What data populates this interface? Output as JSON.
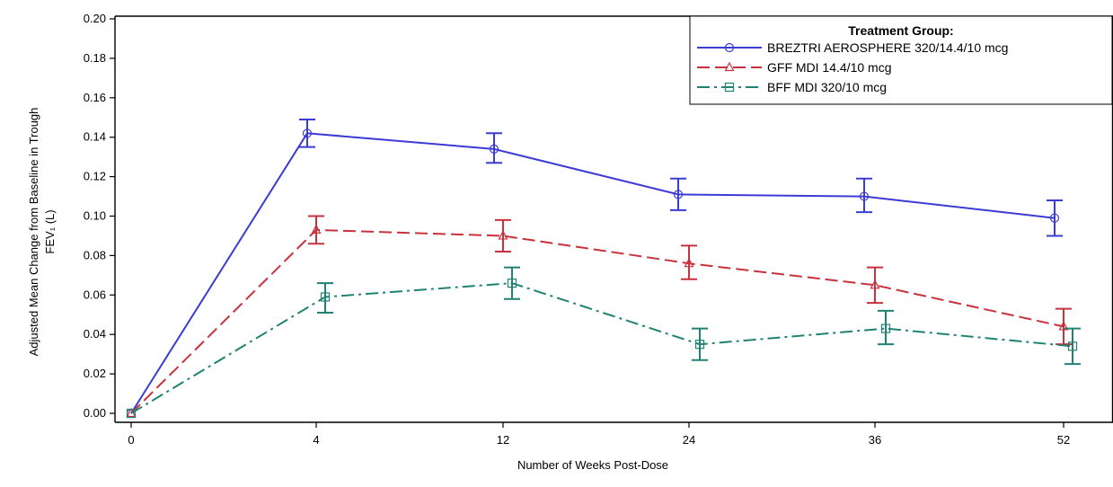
{
  "chart_data": {
    "type": "line",
    "xlabel": "Number of Weeks Post-Dose",
    "ylabel_lines": [
      "Adjusted Mean Change from Baseline in Trough",
      "FEV₁ (L)"
    ],
    "categories": [
      "0",
      "4",
      "12",
      "24",
      "36",
      "52"
    ],
    "ylim": [
      0,
      0.2
    ],
    "y_ticks": [
      "0.00",
      "0.02",
      "0.04",
      "0.06",
      "0.08",
      "0.10",
      "0.12",
      "0.14",
      "0.16",
      "0.18",
      "0.20"
    ],
    "grid": false,
    "legend": {
      "title": "Treatment Group:",
      "placement": "top-right"
    },
    "series": [
      {
        "name": "BREZTRI AEROSPHERE 320/14.4/10 mcg",
        "color": "#3b3bd6",
        "marker": "circle",
        "line_style": "solid",
        "values": [
          0,
          0.142,
          0.134,
          0.111,
          0.11,
          0.099
        ],
        "lower": [
          0,
          0.135,
          0.127,
          0.103,
          0.102,
          0.09
        ],
        "upper": [
          0,
          0.149,
          0.142,
          0.119,
          0.119,
          0.108
        ]
      },
      {
        "name": "GFF MDI 14.4/10 mcg",
        "color": "#c8323c",
        "marker": "triangle",
        "line_style": "dash",
        "values": [
          0,
          0.093,
          0.09,
          0.076,
          0.065,
          0.044
        ],
        "lower": [
          0,
          0.086,
          0.082,
          0.068,
          0.056,
          0.035
        ],
        "upper": [
          0,
          0.1,
          0.098,
          0.085,
          0.074,
          0.053
        ]
      },
      {
        "name": "BFF MDI 320/10 mcg",
        "color": "#1f8272",
        "marker": "square",
        "line_style": "dashdot",
        "values": [
          0,
          0.059,
          0.066,
          0.035,
          0.043,
          0.034
        ],
        "lower": [
          0,
          0.051,
          0.058,
          0.027,
          0.035,
          0.025
        ],
        "upper": [
          0,
          0.066,
          0.074,
          0.043,
          0.052,
          0.043
        ]
      }
    ]
  }
}
